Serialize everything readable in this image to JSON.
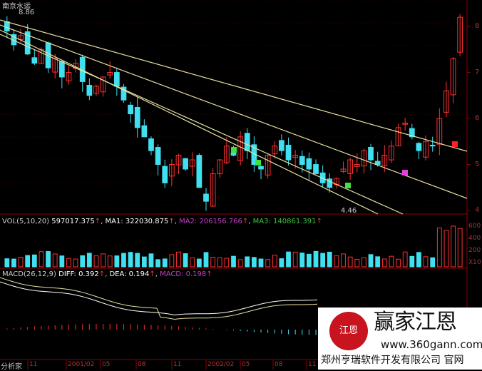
{
  "stock": {
    "name": "南京水运",
    "high_label": "8.86",
    "low_label": "4.46"
  },
  "price_axis": [
    "8",
    "7",
    "6",
    "5",
    "4"
  ],
  "vol_axis": [
    "600",
    "400",
    "200",
    "X10"
  ],
  "vol_header": {
    "title": "VOL(5,10,20)",
    "value": "597017.375",
    "ma1": "MA1: 322030.875",
    "ma2": "MA2: 206156.766",
    "ma3": "MA3: 140861.391"
  },
  "macd_header": {
    "title": "MACD(26,12,9)",
    "diff": "DIFF: 0.392",
    "dea": "DEA: 0.194",
    "macd": "MACD: 0.198"
  },
  "date_axis": {
    "label": "分析家",
    "ticks": [
      "11",
      "2001/02",
      "05",
      "08",
      "11",
      "2002/02",
      "05",
      "08",
      "11"
    ]
  },
  "colors": {
    "up": "#ff3030",
    "down": "#40e0f0",
    "ma2": "#c040c0",
    "ma3": "#40c040",
    "fan": "#e8e0a0",
    "grid": "#8b0000"
  },
  "price_closes": [
    7.9,
    7.6,
    7.8,
    7.4,
    7.2,
    7.5,
    7.1,
    7.3,
    6.9,
    7.0,
    7.2,
    6.8,
    6.5,
    6.7,
    6.9,
    7.0,
    6.7,
    6.4,
    6.1,
    5.8,
    5.6,
    5.3,
    5.0,
    4.6,
    5.0,
    5.2,
    4.9,
    5.1,
    4.5,
    4.2,
    4.8,
    5.1,
    5.4,
    5.2,
    5.6,
    5.3,
    5.0,
    4.9,
    5.2,
    5.4,
    5.3,
    5.1,
    5.2,
    5.0,
    4.9,
    4.8,
    4.6,
    4.5,
    4.7,
    4.9,
    5.1,
    5.0,
    5.3,
    5.1,
    5.0,
    5.2,
    5.4,
    5.8,
    5.9,
    5.6,
    5.3,
    5.5,
    5.4,
    6.0,
    6.6,
    7.3,
    8.2
  ],
  "watermark": {
    "logo": "江恩 赢家",
    "brand": "赢家江恩",
    "url": "www.360gann.com",
    "company": "郑州亨瑞软件开发有限公司 官网"
  }
}
